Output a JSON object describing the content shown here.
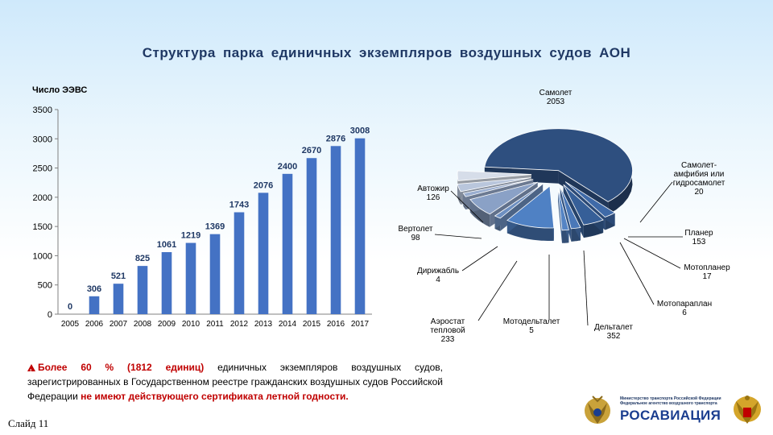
{
  "slide": {
    "title": "Структура  парка единичных экземпляров воздушных  судов АОН",
    "slide_number": "Слайд  11",
    "note_red1": "Более  60  %  (1812  единиц)",
    "note_text": " единичных экземпляров воздушных судов, зарегистрированных в Государственном реестре гражданских воздушных судов Российской Федерации ",
    "note_red2": "не имеют действующего  сертификата летной годности.",
    "ministry_line1": "Министерство транспорта Российской Федерации",
    "ministry_line2": "Федеральное агентство воздушного транспорта",
    "logo_name": "РОСАВИАЦИЯ"
  },
  "chart_data": [
    {
      "type": "bar",
      "ylabel": "Число ЭЭВС",
      "ylim": [
        0,
        3500
      ],
      "yticks": [
        0,
        500,
        1000,
        1500,
        2000,
        2500,
        3000,
        3500
      ],
      "categories": [
        "2005",
        "2006",
        "2007",
        "2008",
        "2009",
        "2010",
        "2011",
        "2012",
        "2013",
        "2014",
        "2015",
        "2016",
        "2017"
      ],
      "values": [
        0,
        306,
        521,
        825,
        1061,
        1219,
        1369,
        1743,
        2076,
        2400,
        2670,
        2876,
        3008
      ],
      "color": "#4472c4",
      "data_labels": true
    },
    {
      "type": "pie",
      "style": "3d-exploded",
      "slices": [
        {
          "name": "Самолет",
          "value": 2053,
          "color": "#2e4f7f"
        },
        {
          "name": "Самолет-амфибия или гидросамолет",
          "value": 20,
          "color": "#3f6aa8"
        },
        {
          "name": "Планер",
          "value": 153,
          "color": "#365f98"
        },
        {
          "name": "Мотопланер",
          "value": 17,
          "color": "#4a78b8"
        },
        {
          "name": "Мотопараплан",
          "value": 6,
          "color": "#5584c4"
        },
        {
          "name": "Дельталет",
          "value": 352,
          "color": "#4f81c4"
        },
        {
          "name": "Мотодельталет",
          "value": 5,
          "color": "#6d8fc0"
        },
        {
          "name": "Аэростат тепловой",
          "value": 233,
          "color": "#8aa1c6"
        },
        {
          "name": "Дирижабль",
          "value": 4,
          "color": "#9aaed0"
        },
        {
          "name": "Вертолет",
          "value": 98,
          "color": "#b9c6dc"
        },
        {
          "name": "Автожир",
          "value": 126,
          "color": "#d6dde9"
        }
      ]
    }
  ]
}
